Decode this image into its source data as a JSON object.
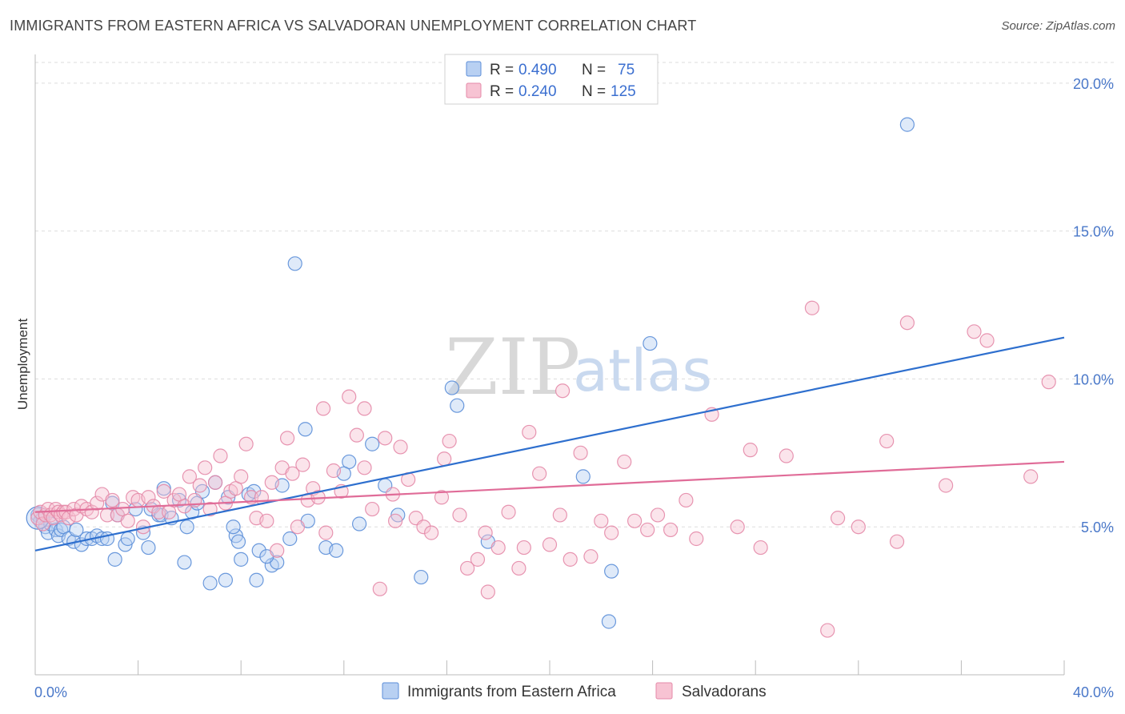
{
  "title": "IMMIGRANTS FROM EASTERN AFRICA VS SALVADORAN UNEMPLOYMENT CORRELATION CHART",
  "source": "Source: ZipAtlas.com",
  "watermark": {
    "zip": "ZIP",
    "atlas": "atlas"
  },
  "colors": {
    "blue_fill": "#b8d0f2",
    "blue_stroke": "#5b8ed8",
    "blue_line": "#2e6fce",
    "pink_fill": "#f7c3d3",
    "pink_stroke": "#e48aa8",
    "pink_line": "#e06c98",
    "grid": "#dddddd",
    "axis_text": "#4a78c9"
  },
  "legend": {
    "rows": [
      {
        "r_label": "R =",
        "r_value": "0.490",
        "n_label": "N =",
        "n_value": "75"
      },
      {
        "r_label": "R =",
        "r_value": "0.240",
        "n_label": "N =",
        "n_value": "125"
      }
    ]
  },
  "chart_data": {
    "type": "scatter",
    "title": "IMMIGRANTS FROM EASTERN AFRICA VS SALVADORAN UNEMPLOYMENT CORRELATION CHART",
    "xlabel": "",
    "ylabel": "Unemployment",
    "xlim": [
      0,
      40
    ],
    "ylim": [
      0,
      20.7
    ],
    "x_tick_labels": [
      "0.0%",
      "40.0%"
    ],
    "y_ticks": [
      5,
      10,
      15,
      20
    ],
    "y_tick_labels": [
      "5.0%",
      "10.0%",
      "15.0%",
      "20.0%"
    ],
    "grid": true,
    "legend_position": "top-center",
    "series": [
      {
        "name": "Immigrants from Eastern Africa",
        "R": 0.49,
        "N": 75,
        "trend": {
          "x": [
            0,
            40
          ],
          "y": [
            4.2,
            11.4
          ]
        },
        "points": [
          [
            0.1,
            5.4
          ],
          [
            0.2,
            5.2
          ],
          [
            0.3,
            5.3
          ],
          [
            0.4,
            5.0
          ],
          [
            0.5,
            4.8
          ],
          [
            0.6,
            5.1
          ],
          [
            0.8,
            4.9
          ],
          [
            0.9,
            4.7
          ],
          [
            1.0,
            4.9
          ],
          [
            1.1,
            5.0
          ],
          [
            1.3,
            4.6
          ],
          [
            1.5,
            4.5
          ],
          [
            1.6,
            4.9
          ],
          [
            1.8,
            4.4
          ],
          [
            2.0,
            4.6
          ],
          [
            2.2,
            4.6
          ],
          [
            2.4,
            4.7
          ],
          [
            2.6,
            4.6
          ],
          [
            2.8,
            4.6
          ],
          [
            3.0,
            5.8
          ],
          [
            3.2,
            5.4
          ],
          [
            3.5,
            4.4
          ],
          [
            3.6,
            4.6
          ],
          [
            3.9,
            5.6
          ],
          [
            4.2,
            4.8
          ],
          [
            4.4,
            4.3
          ],
          [
            4.5,
            5.6
          ],
          [
            4.8,
            5.4
          ],
          [
            4.9,
            5.4
          ],
          [
            5.0,
            6.3
          ],
          [
            5.3,
            5.3
          ],
          [
            5.6,
            5.9
          ],
          [
            5.9,
            5.0
          ],
          [
            6.1,
            5.5
          ],
          [
            6.3,
            5.8
          ],
          [
            6.5,
            6.2
          ],
          [
            7.0,
            6.5
          ],
          [
            7.4,
            3.2
          ],
          [
            7.5,
            6.0
          ],
          [
            7.8,
            4.7
          ],
          [
            7.9,
            4.5
          ],
          [
            8.3,
            6.1
          ],
          [
            8.5,
            6.2
          ],
          [
            8.6,
            3.2
          ],
          [
            8.7,
            4.2
          ],
          [
            9.2,
            3.7
          ],
          [
            9.4,
            3.8
          ],
          [
            9.6,
            6.4
          ],
          [
            9.9,
            4.6
          ],
          [
            10.1,
            13.9
          ],
          [
            10.5,
            8.3
          ],
          [
            10.6,
            5.2
          ],
          [
            11.3,
            4.3
          ],
          [
            11.7,
            4.2
          ],
          [
            12.2,
            7.2
          ],
          [
            12.6,
            5.1
          ],
          [
            13.1,
            7.8
          ],
          [
            13.6,
            6.4
          ],
          [
            14.1,
            5.4
          ],
          [
            15.0,
            3.3
          ],
          [
            16.2,
            9.7
          ],
          [
            16.4,
            9.1
          ],
          [
            17.6,
            4.5
          ],
          [
            21.3,
            6.7
          ],
          [
            22.3,
            1.8
          ],
          [
            22.4,
            3.5
          ],
          [
            23.9,
            11.2
          ],
          [
            33.9,
            18.6
          ],
          [
            7.7,
            5.0
          ],
          [
            9.0,
            4.0
          ],
          [
            5.8,
            3.8
          ],
          [
            12.0,
            6.8
          ],
          [
            3.1,
            3.9
          ],
          [
            6.8,
            3.1
          ],
          [
            8.0,
            3.9
          ]
        ]
      },
      {
        "name": "Salvadorans",
        "R": 0.24,
        "N": 125,
        "trend": {
          "x": [
            0,
            40
          ],
          "y": [
            5.5,
            7.2
          ]
        },
        "points": [
          [
            0.1,
            5.3
          ],
          [
            0.2,
            5.5
          ],
          [
            0.3,
            5.1
          ],
          [
            0.4,
            5.4
          ],
          [
            0.5,
            5.6
          ],
          [
            0.6,
            5.4
          ],
          [
            0.7,
            5.3
          ],
          [
            0.8,
            5.6
          ],
          [
            0.9,
            5.5
          ],
          [
            1.0,
            5.4
          ],
          [
            1.1,
            5.5
          ],
          [
            1.2,
            5.5
          ],
          [
            1.3,
            5.3
          ],
          [
            1.5,
            5.6
          ],
          [
            1.6,
            5.4
          ],
          [
            1.8,
            5.7
          ],
          [
            2.0,
            5.6
          ],
          [
            2.2,
            5.5
          ],
          [
            2.4,
            5.8
          ],
          [
            2.6,
            6.1
          ],
          [
            2.8,
            5.4
          ],
          [
            3.0,
            5.9
          ],
          [
            3.2,
            5.4
          ],
          [
            3.4,
            5.6
          ],
          [
            3.6,
            5.2
          ],
          [
            3.8,
            6.0
          ],
          [
            4.0,
            5.9
          ],
          [
            4.2,
            5.0
          ],
          [
            4.4,
            6.0
          ],
          [
            4.6,
            5.7
          ],
          [
            4.8,
            5.5
          ],
          [
            5.0,
            6.2
          ],
          [
            5.2,
            5.5
          ],
          [
            5.4,
            5.9
          ],
          [
            5.6,
            6.1
          ],
          [
            5.8,
            5.7
          ],
          [
            6.0,
            6.7
          ],
          [
            6.2,
            5.9
          ],
          [
            6.4,
            6.4
          ],
          [
            6.6,
            7.0
          ],
          [
            6.8,
            5.6
          ],
          [
            7.0,
            6.5
          ],
          [
            7.2,
            7.4
          ],
          [
            7.4,
            5.8
          ],
          [
            7.6,
            6.2
          ],
          [
            7.8,
            6.3
          ],
          [
            8.0,
            6.7
          ],
          [
            8.2,
            7.8
          ],
          [
            8.4,
            6.0
          ],
          [
            8.6,
            5.3
          ],
          [
            8.8,
            6.0
          ],
          [
            9.0,
            5.2
          ],
          [
            9.2,
            6.5
          ],
          [
            9.4,
            4.2
          ],
          [
            9.6,
            7.0
          ],
          [
            9.8,
            8.0
          ],
          [
            10.0,
            6.8
          ],
          [
            10.2,
            5.0
          ],
          [
            10.4,
            7.1
          ],
          [
            10.6,
            5.9
          ],
          [
            10.8,
            6.3
          ],
          [
            11.0,
            6.0
          ],
          [
            11.2,
            9.0
          ],
          [
            11.6,
            6.9
          ],
          [
            11.9,
            6.2
          ],
          [
            12.2,
            9.4
          ],
          [
            12.5,
            8.1
          ],
          [
            12.8,
            7.0
          ],
          [
            13.1,
            5.6
          ],
          [
            13.4,
            2.9
          ],
          [
            13.6,
            8.0
          ],
          [
            13.9,
            6.1
          ],
          [
            14.2,
            7.7
          ],
          [
            14.5,
            6.6
          ],
          [
            14.8,
            5.3
          ],
          [
            15.1,
            5.0
          ],
          [
            15.4,
            4.8
          ],
          [
            15.8,
            6.0
          ],
          [
            16.1,
            7.9
          ],
          [
            16.5,
            5.4
          ],
          [
            16.8,
            3.6
          ],
          [
            17.2,
            3.9
          ],
          [
            17.6,
            2.8
          ],
          [
            18.0,
            4.3
          ],
          [
            18.4,
            5.5
          ],
          [
            18.8,
            3.6
          ],
          [
            19.2,
            8.2
          ],
          [
            19.6,
            6.8
          ],
          [
            20.0,
            4.4
          ],
          [
            20.4,
            5.4
          ],
          [
            20.8,
            3.9
          ],
          [
            21.2,
            7.5
          ],
          [
            21.6,
            4.0
          ],
          [
            22.0,
            5.2
          ],
          [
            22.4,
            4.8
          ],
          [
            22.9,
            7.2
          ],
          [
            23.3,
            5.2
          ],
          [
            23.8,
            4.9
          ],
          [
            24.2,
            5.4
          ],
          [
            25.3,
            5.9
          ],
          [
            25.7,
            4.6
          ],
          [
            26.3,
            8.8
          ],
          [
            27.3,
            5.0
          ],
          [
            27.8,
            7.6
          ],
          [
            28.2,
            4.3
          ],
          [
            29.2,
            7.4
          ],
          [
            30.2,
            12.4
          ],
          [
            31.2,
            5.3
          ],
          [
            32.0,
            5.0
          ],
          [
            33.1,
            7.9
          ],
          [
            33.5,
            4.5
          ],
          [
            33.9,
            11.9
          ],
          [
            35.4,
            6.4
          ],
          [
            36.5,
            11.6
          ],
          [
            37.0,
            11.3
          ],
          [
            38.7,
            6.7
          ],
          [
            39.4,
            9.9
          ],
          [
            17.5,
            4.8
          ],
          [
            12.8,
            9.0
          ],
          [
            30.8,
            1.5
          ],
          [
            20.5,
            9.6
          ],
          [
            24.7,
            4.9
          ],
          [
            19.0,
            4.3
          ],
          [
            14.0,
            5.2
          ],
          [
            11.3,
            4.8
          ],
          [
            15.9,
            7.3
          ]
        ]
      }
    ]
  },
  "bottom_legend": {
    "items": [
      {
        "label": "Immigrants from Eastern Africa"
      },
      {
        "label": "Salvadorans"
      }
    ]
  }
}
